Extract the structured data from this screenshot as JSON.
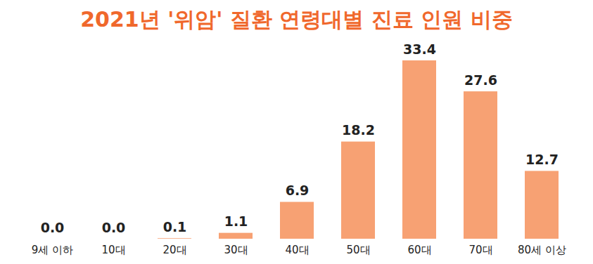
{
  "chart_data": {
    "type": "bar",
    "title": "2021년 '위암' 질환 연령대별 진료 인원 비중",
    "categories": [
      "9세 이하",
      "10대",
      "20대",
      "30대",
      "40대",
      "50대",
      "60대",
      "70대",
      "80세 이상"
    ],
    "values": [
      0.0,
      0.0,
      0.1,
      1.1,
      6.9,
      18.2,
      33.4,
      27.6,
      12.7
    ],
    "value_labels": [
      "0.0",
      "0.0",
      "0.1",
      "1.1",
      "6.9",
      "18.2",
      "33.4",
      "27.6",
      "12.7"
    ],
    "color": "#f7a173",
    "data_labels": true,
    "tick_labels": "x",
    "grid": false
  }
}
